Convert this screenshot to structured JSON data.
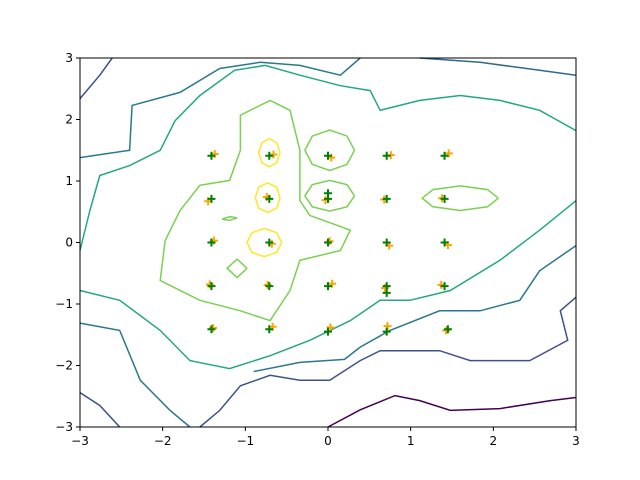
{
  "chart_data": {
    "type": "contour",
    "xlim": [
      -3,
      3
    ],
    "ylim": [
      -3,
      3
    ],
    "xticks": [
      {
        "value": -3,
        "label": "−3"
      },
      {
        "value": -2,
        "label": "−2"
      },
      {
        "value": -1,
        "label": "−1"
      },
      0,
      1,
      2,
      3
    ],
    "yticks": [
      {
        "value": -3,
        "label": "−3"
      },
      {
        "value": -2,
        "label": "−2"
      },
      {
        "value": -1,
        "label": "−1"
      },
      0,
      1,
      2,
      3
    ],
    "contours": [
      {
        "color": "#440154",
        "x": [
          0,
          0.39,
          0.81,
          1.11,
          1.48,
          2.08,
          2.69,
          3
        ],
        "y": [
          -3,
          -2.72,
          -2.49,
          -2.57,
          -2.73,
          -2.7,
          -2.57,
          -2.52
        ]
      },
      {
        "color": "#3b528b",
        "x": [
          -3,
          -2.76,
          -2.61
        ],
        "y": [
          2.34,
          2.72,
          3
        ]
      },
      {
        "color": "#31688e",
        "x": [
          1.11,
          1.84,
          2.56,
          3
        ],
        "y": [
          3,
          2.93,
          2.8,
          2.72
        ]
      },
      {
        "color": "#3b528b",
        "x": [
          -3,
          -2.76,
          -2.52
        ],
        "y": [
          -2.44,
          -2.65,
          -3
        ]
      },
      {
        "color": "#3b528b",
        "x": [
          3,
          2.81,
          2.9,
          2.44,
          1.72,
          1.35,
          0.63,
          0.39,
          0.02,
          -0.34,
          -0.7,
          -1.06,
          -1.31,
          -1.55
        ],
        "y": [
          -0.89,
          -1.11,
          -1.59,
          -1.92,
          -1.92,
          -1.76,
          -1.76,
          -1.92,
          -2.24,
          -2.24,
          -2.16,
          -2.33,
          -2.73,
          -3
        ]
      },
      {
        "color": "#2a788e",
        "x": [
          -3,
          -2.4,
          -2.37,
          -1.79,
          -1.31,
          -0.82,
          -0.34,
          0.15,
          0.39
        ],
        "y": [
          1.38,
          1.5,
          2.23,
          2.44,
          2.83,
          2.93,
          2.88,
          2.72,
          3
        ]
      },
      {
        "color": "#2a788e",
        "x": [
          -3,
          -2.52,
          -2.27,
          -1.91,
          -1.67
        ],
        "y": [
          -1.31,
          -1.43,
          -2.24,
          -2.73,
          -3
        ]
      },
      {
        "color": "#2a788e",
        "x": [
          3,
          2.56,
          2.32,
          1.84,
          1.35,
          0.75,
          0.39,
          0.2,
          -0.34,
          -0.9
        ],
        "y": [
          -0.05,
          -0.46,
          -0.94,
          -1.11,
          -1.11,
          -1.43,
          -1.7,
          -1.9,
          -1.95,
          -2.1
        ]
      },
      {
        "color": "#22a884",
        "x": [
          3,
          2.56,
          2.08,
          1.6,
          1.11,
          0.63,
          0.51,
          0.15,
          -0.34,
          -0.76,
          -1.13,
          -1.55,
          -1.85,
          -2.03,
          -2.4,
          -2.76,
          -2.88,
          -3
        ],
        "y": [
          1.82,
          2.15,
          2.31,
          2.39,
          2.31,
          2.15,
          2.47,
          2.55,
          2.72,
          2.88,
          2.8,
          2.39,
          1.98,
          1.5,
          1.25,
          1.09,
          0.52,
          -0.13
        ]
      },
      {
        "color": "#22a884",
        "x": [
          -3,
          -2.52,
          -2.03,
          -1.67,
          -1.19,
          -0.7,
          -0.22,
          0.27,
          0.63,
          0.99,
          1.48,
          2.08,
          2.56,
          3
        ],
        "y": [
          -0.78,
          -0.94,
          -1.43,
          -1.92,
          -2.05,
          -1.84,
          -1.59,
          -1.27,
          -0.94,
          -0.94,
          -0.78,
          -0.29,
          0.2,
          0.68
        ]
      },
      {
        "color": "#7ad151",
        "x": [
          -0.7,
          -0.46,
          -0.34,
          -0.34,
          -0.22,
          0.27,
          0.15,
          -0.34,
          -0.46,
          -0.7,
          -1.06,
          -1.55,
          -2.03,
          -1.97,
          -1.79,
          -1.55,
          -1.19,
          -1.06,
          -1.06,
          -0.7
        ],
        "y": [
          2.31,
          2.15,
          1.5,
          0.68,
          0.44,
          0.2,
          -0.13,
          -0.29,
          -0.78,
          -1.27,
          -1.11,
          -0.94,
          -0.62,
          0.03,
          0.52,
          0.93,
          1.01,
          1.5,
          2.07,
          2.31
        ]
      },
      {
        "color": "#7ad151",
        "x": [
          0.32,
          0.23,
          0.02,
          -0.19,
          -0.28,
          -0.19,
          0.02,
          0.23,
          0.32
        ],
        "y": [
          1.5,
          1.73,
          1.83,
          1.73,
          1.5,
          1.27,
          1.17,
          1.27,
          1.5
        ]
      },
      {
        "color": "#7ad151",
        "x": [
          0.32,
          0.23,
          0.02,
          -0.19,
          -0.28,
          -0.19,
          0.02,
          0.23,
          0.32
        ],
        "y": [
          0.76,
          0.94,
          1.01,
          0.94,
          0.76,
          0.58,
          0.51,
          0.58,
          0.76
        ]
      },
      {
        "color": "#7ad151",
        "x": [
          2.06,
          1.93,
          1.6,
          1.27,
          1.14,
          1.27,
          1.6,
          1.93,
          2.06
        ],
        "y": [
          0.72,
          0.86,
          0.92,
          0.86,
          0.72,
          0.58,
          0.52,
          0.58,
          0.72
        ]
      },
      {
        "color": "#7ad151",
        "x": [
          -0.98,
          -1.1,
          -1.22,
          -1.1,
          -0.98
        ],
        "y": [
          -0.42,
          -0.27,
          -0.42,
          -0.57,
          -0.42
        ]
      },
      {
        "color": "#7ad151",
        "x": [
          -1.1,
          -1.19,
          -1.28,
          -1.19,
          -1.1
        ],
        "y": [
          0.4,
          0.42,
          0.38,
          0.36,
          0.4
        ]
      },
      {
        "color": "#fde725",
        "x": [
          -0.58,
          -0.62,
          -0.71,
          -0.8,
          -0.84,
          -0.8,
          -0.71,
          -0.62,
          -0.58
        ],
        "y": [
          1.46,
          1.62,
          1.69,
          1.62,
          1.46,
          1.3,
          1.23,
          1.3,
          1.46
        ]
      },
      {
        "color": "#fde725",
        "x": [
          -0.58,
          -0.62,
          -0.73,
          -0.84,
          -0.88,
          -0.84,
          -0.73,
          -0.62,
          -0.58
        ],
        "y": [
          0.73,
          0.9,
          0.97,
          0.9,
          0.73,
          0.56,
          0.49,
          0.56,
          0.73
        ]
      },
      {
        "color": "#fde725",
        "x": [
          -0.56,
          -0.62,
          -0.77,
          -0.92,
          -0.98,
          -0.92,
          -0.77,
          -0.62,
          -0.56
        ],
        "y": [
          0,
          0.16,
          0.23,
          0.16,
          0,
          -0.16,
          -0.23,
          -0.16,
          0
        ]
      }
    ],
    "scatter": [
      {
        "color": "#ffa500",
        "x": [
          -1.37,
          -1.45,
          -1.38,
          -1.43,
          -1.39,
          -0.66,
          -0.74,
          -0.68,
          -0.73,
          -0.67,
          0.04,
          -0.03,
          0.02,
          0.05,
          0.03,
          0.76,
          0.68,
          0.74,
          0.69,
          0.72,
          1.46,
          1.38,
          1.45,
          1.37,
          1.43
        ],
        "y": [
          1.44,
          0.67,
          0.03,
          -0.68,
          -1.39,
          1.43,
          0.74,
          -0.02,
          -0.69,
          -1.37,
          1.38,
          0.69,
          0.02,
          -0.67,
          -1.38,
          1.42,
          0.7,
          -0.05,
          -0.74,
          -1.36,
          1.45,
          0.72,
          -0.04,
          -0.69,
          -1.43
        ]
      },
      {
        "color": "#008000",
        "x": [
          -1.41,
          -1.41,
          -1.41,
          -1.41,
          -1.41,
          -0.71,
          -0.71,
          -0.71,
          -0.71,
          -0.71,
          0,
          0,
          0,
          0,
          0,
          0.71,
          0.71,
          0.71,
          0.71,
          0.71,
          1.41,
          1.41,
          1.41,
          1.41,
          1.45,
          0,
          0.71
        ],
        "y": [
          1.41,
          0.71,
          0,
          -0.71,
          -1.41,
          1.41,
          0.71,
          0,
          -0.71,
          -1.41,
          1.41,
          0.71,
          0,
          -0.71,
          -1.45,
          1.41,
          0.71,
          0,
          -0.71,
          -1.45,
          1.41,
          0.71,
          0,
          -0.71,
          -1.41,
          0.8,
          -0.82
        ]
      }
    ]
  }
}
